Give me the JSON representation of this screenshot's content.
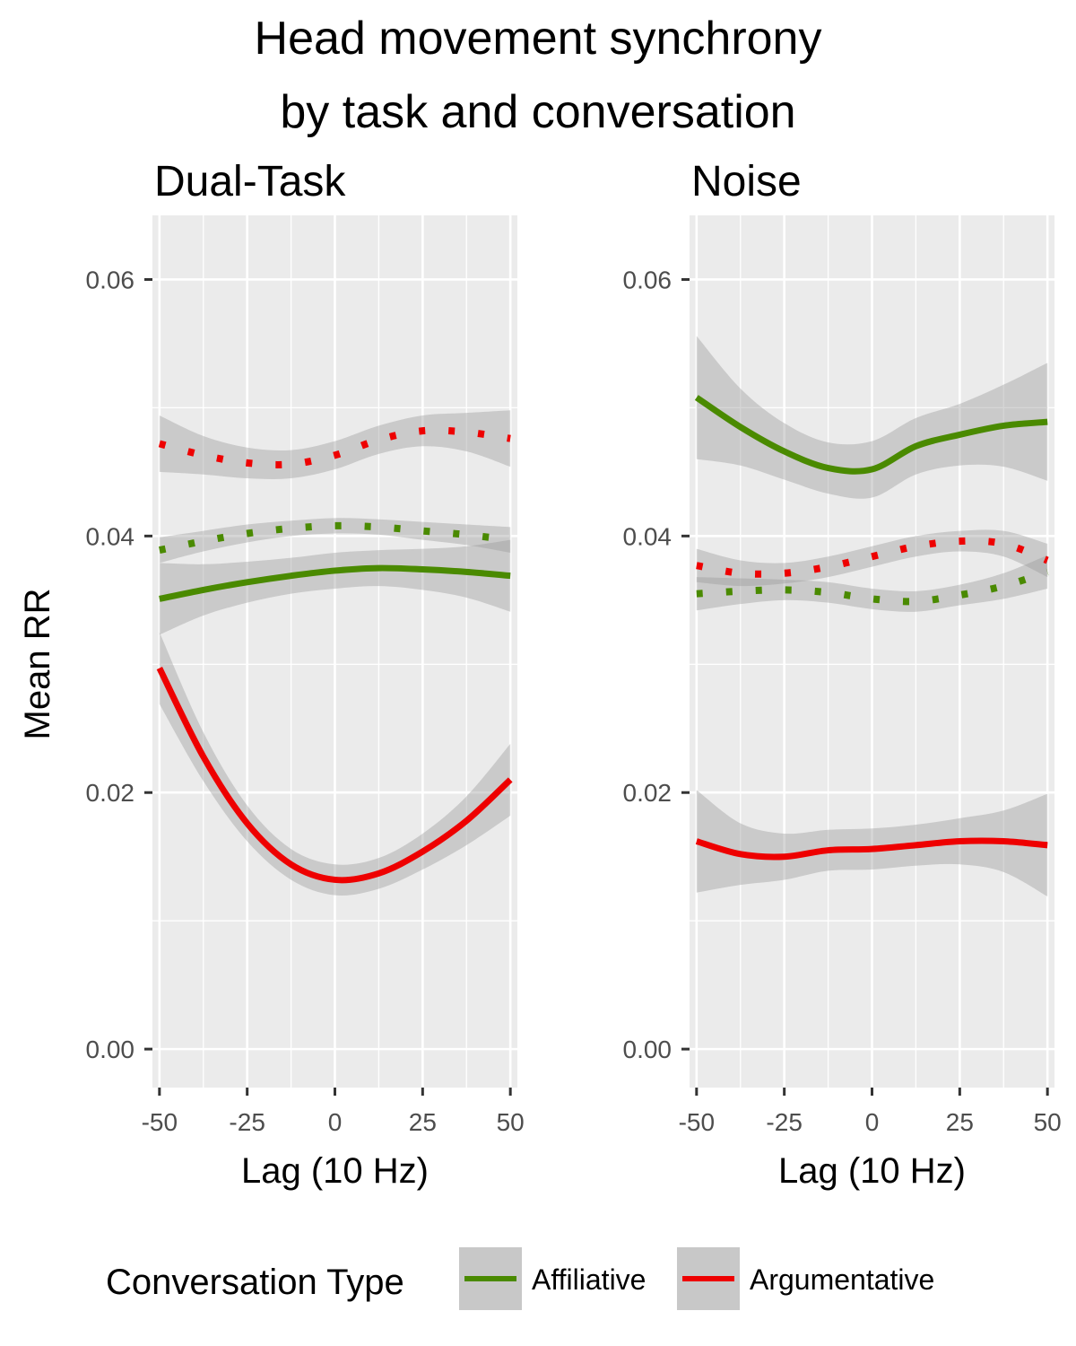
{
  "chart_data": {
    "type": "line",
    "title": [
      "Head movement synchrony",
      "by task and conversation"
    ],
    "xlabel": "Lag (10 Hz)",
    "ylabel": "Mean RR",
    "xlim": [
      -52,
      52
    ],
    "ylim": [
      -0.003,
      0.065
    ],
    "x_ticks": [
      -50,
      -25,
      0,
      25,
      50
    ],
    "x_tick_labels": [
      "-50",
      "-25",
      "0",
      "25",
      "50"
    ],
    "y_ticks": [
      0,
      0.02,
      0.04,
      0.06
    ],
    "y_tick_labels": [
      "0.00",
      "0.02",
      "0.04",
      "0.06"
    ],
    "grid": true,
    "legend": {
      "title": "Conversation Type",
      "position": "bottom",
      "entries": [
        {
          "label": "Affiliative",
          "color": "#4a8a00"
        },
        {
          "label": "Argumentative",
          "color": "#ee0000"
        }
      ]
    },
    "x": [
      -50,
      -37.5,
      -25,
      -12.5,
      0,
      12.5,
      25,
      37.5,
      50
    ],
    "panels": [
      {
        "name": "Dual-Task",
        "series": [
          {
            "group": "Affiliative",
            "linetype": "solid",
            "color": "#4a8a00",
            "values": [
              0.0351,
              0.0358,
              0.0364,
              0.0369,
              0.0373,
              0.0375,
              0.0374,
              0.0372,
              0.0369
            ],
            "ci_halfwidth": [
              0.0028,
              0.002,
              0.0016,
              0.0014,
              0.0014,
              0.0014,
              0.0016,
              0.002,
              0.0028
            ]
          },
          {
            "group": "Argumentative",
            "linetype": "solid",
            "color": "#ee0000",
            "values": [
              0.0297,
              0.0228,
              0.0176,
              0.0144,
              0.0132,
              0.0137,
              0.0154,
              0.0178,
              0.021
            ],
            "ci_halfwidth": [
              0.0028,
              0.0019,
              0.0014,
              0.0012,
              0.0012,
              0.0012,
              0.0014,
              0.0019,
              0.0028
            ]
          },
          {
            "group": "Affiliative",
            "linetype": "dotted",
            "color": "#4a8a00",
            "values": [
              0.0389,
              0.0396,
              0.0402,
              0.0406,
              0.0408,
              0.0407,
              0.0404,
              0.0401,
              0.0397
            ],
            "ci_halfwidth": [
              0.001,
              0.0008,
              0.0007,
              0.0006,
              0.0006,
              0.0006,
              0.0007,
              0.0008,
              0.001
            ]
          },
          {
            "group": "Argumentative",
            "linetype": "dotted",
            "color": "#ee0000",
            "values": [
              0.0472,
              0.0463,
              0.0457,
              0.0456,
              0.0463,
              0.0475,
              0.0482,
              0.0481,
              0.0476
            ],
            "ci_halfwidth": [
              0.0022,
              0.0015,
              0.0012,
              0.0011,
              0.0011,
              0.0011,
              0.0012,
              0.0015,
              0.0022
            ]
          }
        ]
      },
      {
        "name": "Noise",
        "series": [
          {
            "group": "Affiliative",
            "linetype": "solid",
            "color": "#4a8a00",
            "values": [
              0.0508,
              0.0485,
              0.0466,
              0.0453,
              0.0452,
              0.047,
              0.0479,
              0.0486,
              0.0489
            ],
            "ci_halfwidth": [
              0.0048,
              0.003,
              0.0022,
              0.002,
              0.0022,
              0.0022,
              0.0024,
              0.0032,
              0.0046
            ]
          },
          {
            "group": "Argumentative",
            "linetype": "solid",
            "color": "#ee0000",
            "values": [
              0.0162,
              0.0152,
              0.015,
              0.0155,
              0.0156,
              0.0159,
              0.0162,
              0.0162,
              0.0159
            ],
            "ci_halfwidth": [
              0.004,
              0.0024,
              0.0018,
              0.0016,
              0.0016,
              0.0016,
              0.0018,
              0.0024,
              0.004
            ]
          },
          {
            "group": "Affiliative",
            "linetype": "dotted",
            "color": "#4a8a00",
            "values": [
              0.0355,
              0.0357,
              0.0358,
              0.0356,
              0.0351,
              0.0349,
              0.0354,
              0.0361,
              0.0372
            ],
            "ci_halfwidth": [
              0.0013,
              0.001,
              0.0008,
              0.0008,
              0.0008,
              0.0008,
              0.0008,
              0.001,
              0.0013
            ]
          },
          {
            "group": "Argumentative",
            "linetype": "dotted",
            "color": "#ee0000",
            "values": [
              0.0377,
              0.0371,
              0.0371,
              0.0376,
              0.0384,
              0.0392,
              0.0396,
              0.0394,
              0.0381
            ],
            "ci_halfwidth": [
              0.0013,
              0.001,
              0.0008,
              0.0008,
              0.0008,
              0.0008,
              0.0008,
              0.001,
              0.0013
            ]
          }
        ]
      }
    ]
  }
}
